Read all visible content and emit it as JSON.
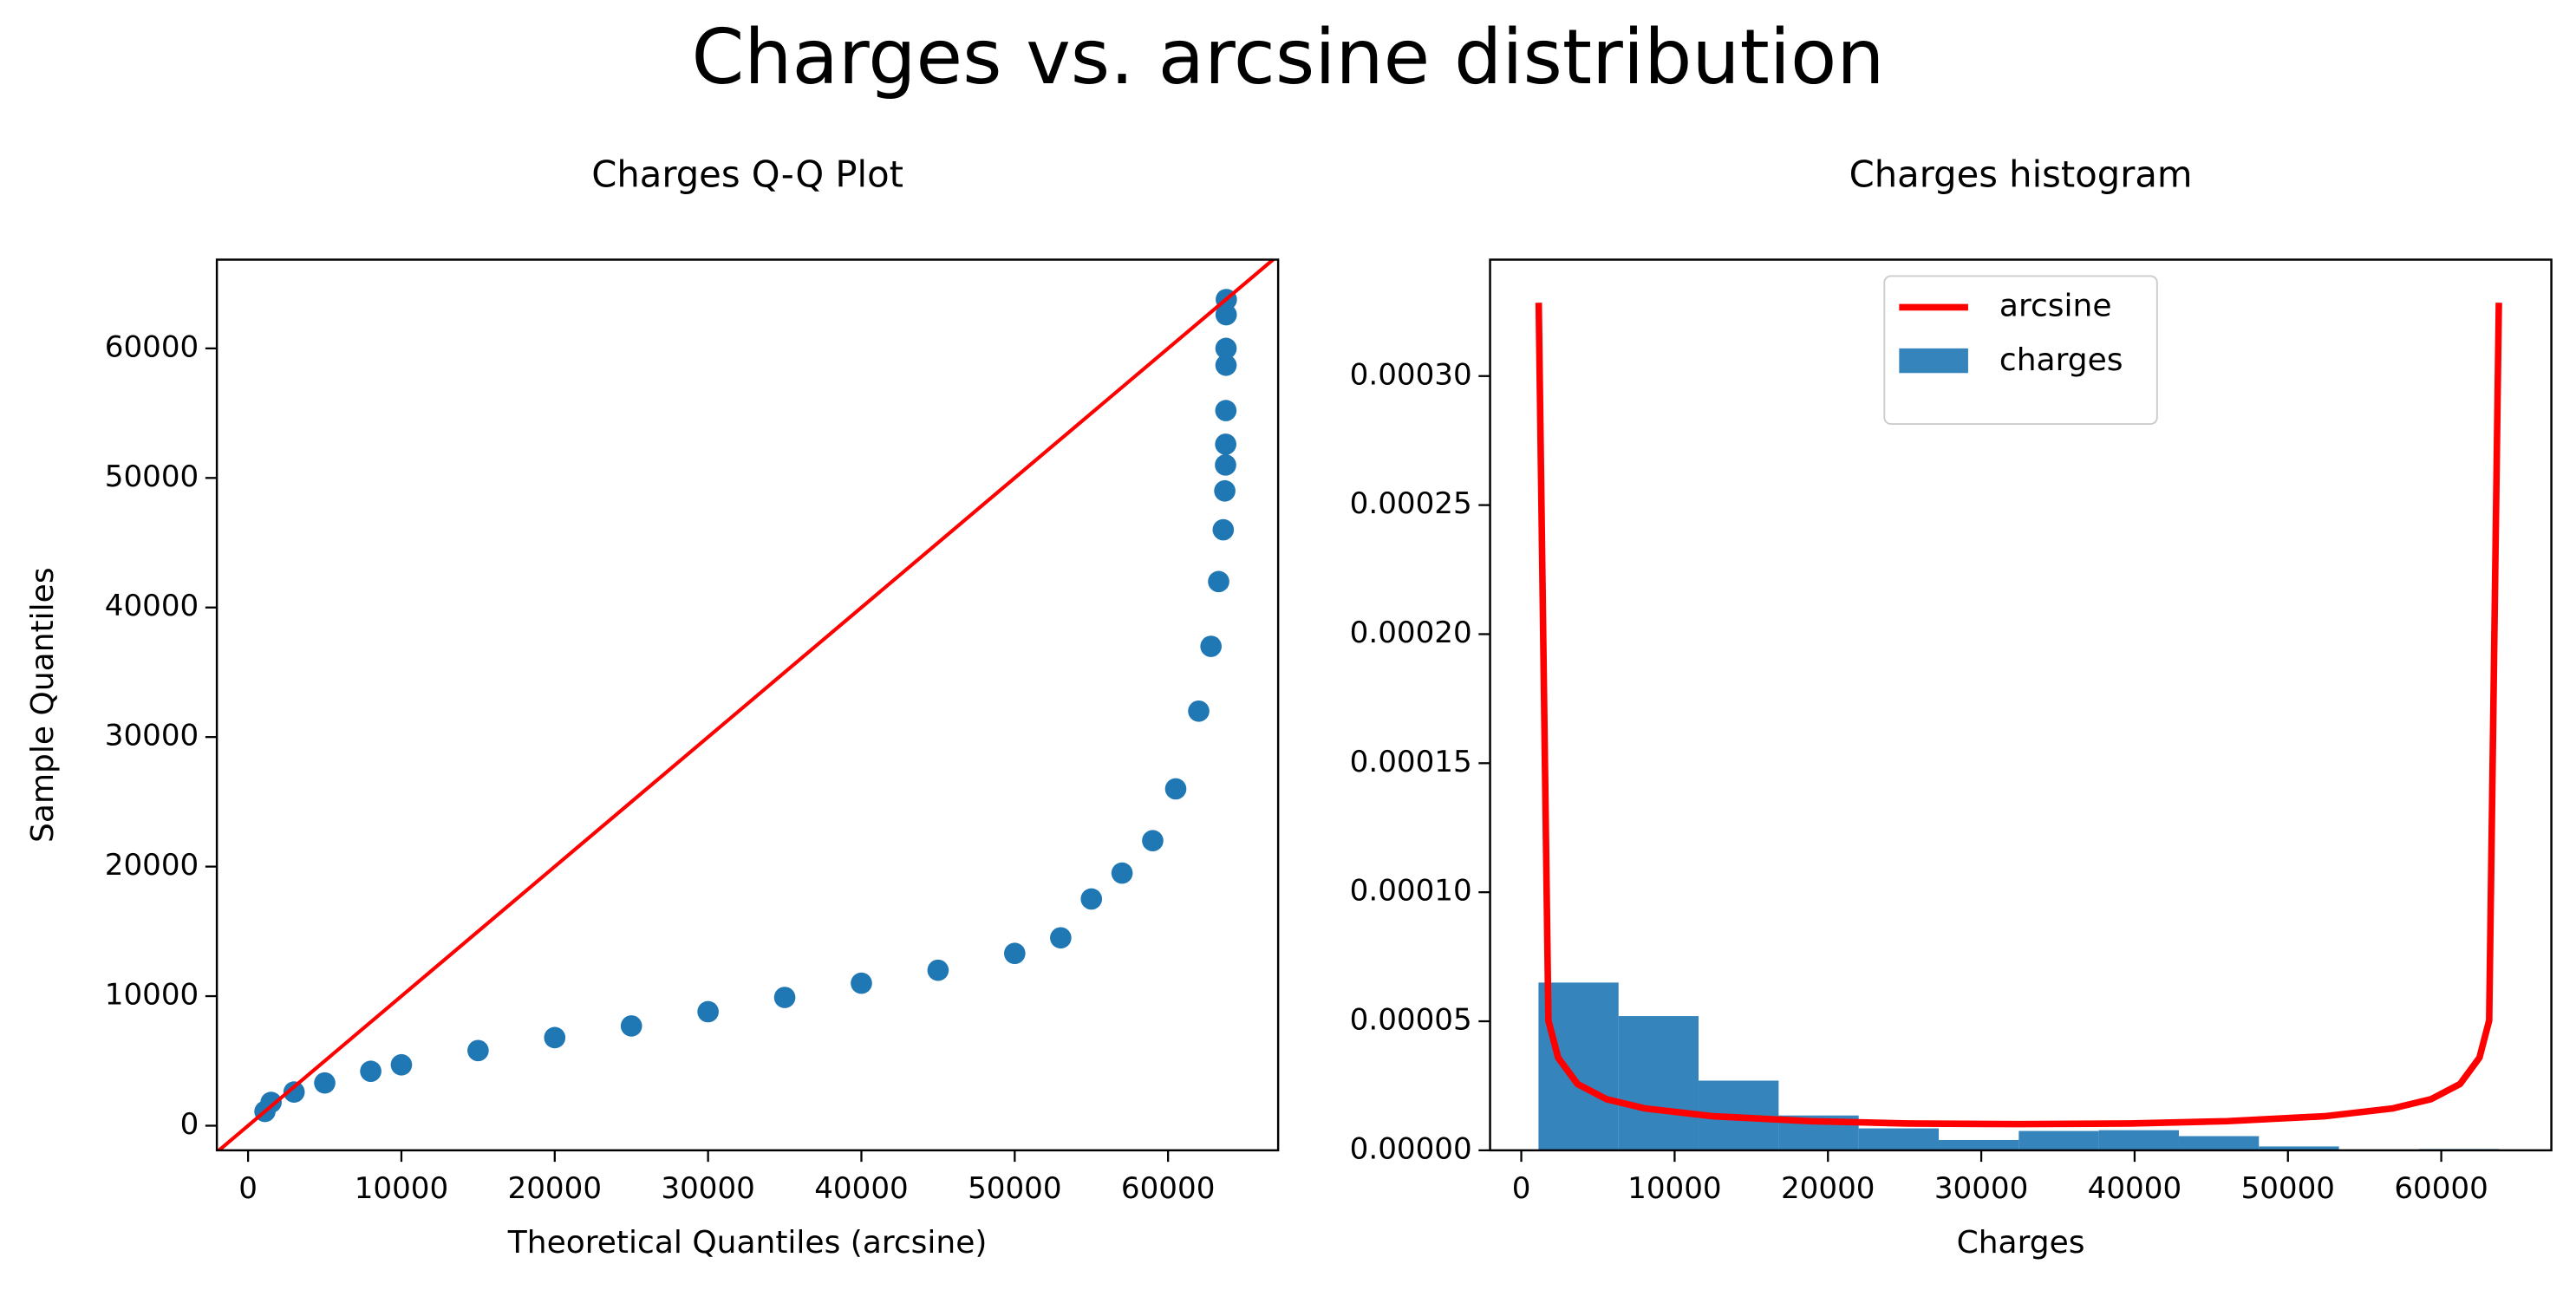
{
  "title": "Charges vs. arcsine distribution",
  "chart_data": [
    {
      "type": "scatter",
      "title": "Charges Q-Q Plot",
      "xlabel": "Theoretical Quantiles (arcsine)",
      "ylabel": "Sample Quantiles",
      "color": "#1f77b4",
      "x": [
        1100,
        1500,
        3000,
        5000,
        8000,
        10000,
        15000,
        20000,
        25000,
        30000,
        35000,
        40000,
        45000,
        50000,
        53000,
        55000,
        57000,
        59000,
        60500,
        62000,
        62800,
        63300,
        63600,
        63700,
        63750,
        63760,
        63770,
        63780,
        63780,
        63790,
        63800
      ],
      "values": [
        1100,
        1800,
        2600,
        3300,
        4200,
        4700,
        5800,
        6800,
        7700,
        8800,
        9900,
        11000,
        12000,
        13300,
        14500,
        17500,
        19500,
        22000,
        26000,
        32000,
        37000,
        42000,
        46000,
        49000,
        51000,
        52600,
        55200,
        58700,
        60000,
        62600,
        63770
      ],
      "reference_line": {
        "color": "#ff0000",
        "x": [
          -2000,
          67200
        ],
        "values": [
          -2000,
          67200
        ]
      },
      "xlim": [
        -2036,
        67180
      ],
      "ylim": [
        -1900,
        66850
      ],
      "xticks": [
        0,
        10000,
        20000,
        30000,
        40000,
        50000,
        60000
      ],
      "yticks": [
        0,
        10000,
        20000,
        30000,
        40000,
        50000,
        60000
      ]
    },
    {
      "type": "histogram",
      "title": "Charges histogram",
      "xlabel": "Charges",
      "legend": "upper center",
      "series": [
        {
          "name": "arcsine",
          "type": "line",
          "color": "#ff0000",
          "x": [
            1136,
            1768,
            2401,
            3666,
            5564,
            8094,
            12522,
            18848,
            25175,
            32446,
            39717,
            46044,
            52370,
            56798,
            59328,
            61226,
            62491,
            63124,
            63756
          ],
          "values": [
            0.0003284,
            5.03e-05,
            3.59e-05,
            2.57e-05,
            1.98e-05,
            1.62e-05,
            1.32e-05,
            1.13e-05,
            1.04e-05,
            1.016e-05,
            1.04e-05,
            1.13e-05,
            1.32e-05,
            1.62e-05,
            1.98e-05,
            2.57e-05,
            3.59e-05,
            5.03e-05,
            0.0003284
          ]
        },
        {
          "name": "charges",
          "type": "histogram",
          "color": "#1f77b4",
          "bins": [
            1122,
            6343,
            11563,
            16784,
            22004,
            27225,
            32446,
            37666,
            42887,
            48107,
            53328,
            58549,
            63770
          ],
          "values": [
            6.5e-05,
            5.2e-05,
            2.7e-05,
            1.35e-05,
            8.5e-06,
            4e-06,
            7.5e-06,
            7.8e-06,
            5.5e-06,
            1.5e-06,
            0,
            5e-07
          ]
        }
      ],
      "xlim": [
        -2036,
        67180
      ],
      "ylim": [
        0,
        0.0003451
      ],
      "xticks": [
        0,
        10000,
        20000,
        30000,
        40000,
        50000,
        60000
      ],
      "yticks": [
        {
          "value": 0,
          "label": "0.00000"
        },
        {
          "value": 5e-05,
          "label": "0.00005"
        },
        {
          "value": 0.0001,
          "label": "0.00010"
        },
        {
          "value": 0.00015,
          "label": "0.00015"
        },
        {
          "value": 0.0002,
          "label": "0.00020"
        },
        {
          "value": 0.00025,
          "label": "0.00025"
        },
        {
          "value": 0.0003,
          "label": "0.00030"
        }
      ]
    }
  ]
}
